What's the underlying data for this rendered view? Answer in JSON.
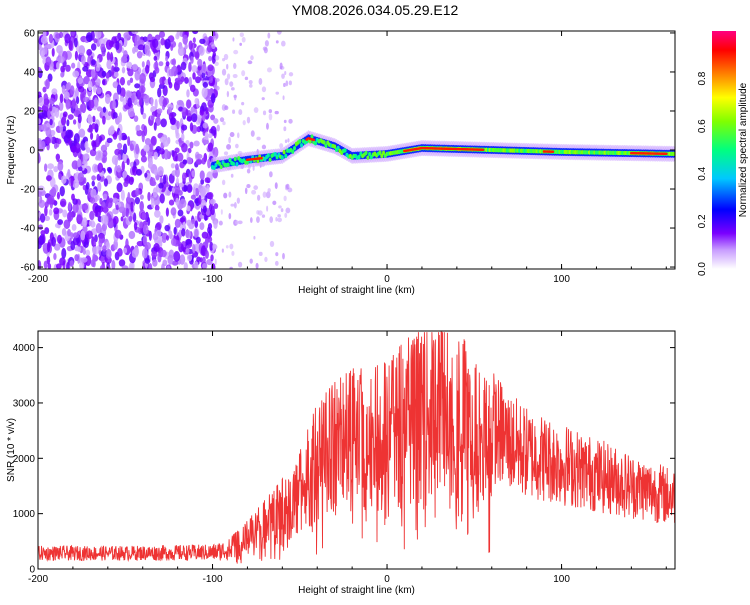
{
  "figure": {
    "title": "YM08.2026.034.05.29.E12"
  },
  "chart_data": [
    {
      "type": "heatmap",
      "name": "spectrogram",
      "xlabel": "Height of straight line (km)",
      "ylabel": "Frequency (Hz)",
      "xlim": [
        -200,
        165
      ],
      "ylim": [
        -61,
        61
      ],
      "xticks": [
        -200,
        -100,
        0,
        100
      ],
      "yticks": [
        60,
        40,
        20,
        0,
        -20,
        -40,
        -60
      ],
      "colorbar": {
        "label": "Normalized spectral amplitude",
        "range": [
          0.0,
          1.0
        ],
        "ticks": [
          0.0,
          0.2,
          0.4,
          0.6,
          0.8
        ],
        "colors": [
          "#d8b0ff",
          "#8000ff",
          "#0000ff",
          "#00c8ff",
          "#00ff80",
          "#80ff00",
          "#ffff00",
          "#ff8000",
          "#ff0000",
          "#ff0080"
        ]
      },
      "ridge": {
        "description_points": [
          {
            "x": -100,
            "y": -8
          },
          {
            "x": -80,
            "y": -5
          },
          {
            "x": -60,
            "y": -3
          },
          {
            "x": -45,
            "y": 6
          },
          {
            "x": -30,
            "y": 2
          },
          {
            "x": -20,
            "y": -3
          },
          {
            "x": 0,
            "y": -2
          },
          {
            "x": 20,
            "y": 1
          },
          {
            "x": 60,
            "y": 0
          },
          {
            "x": 100,
            "y": -1
          },
          {
            "x": 165,
            "y": -2
          }
        ]
      }
    },
    {
      "type": "line",
      "name": "snr",
      "xlabel": "Height of straight line (km)",
      "ylabel": "SNR (10 * v/v)",
      "xlim": [
        -200,
        165
      ],
      "ylim": [
        0,
        4300
      ],
      "xticks": [
        -200,
        -100,
        0,
        100
      ],
      "yticks": [
        0,
        1000,
        2000,
        3000,
        4000
      ],
      "series": [
        {
          "name": "SNR",
          "color": "#ee3333",
          "envelope_x": [
            -200,
            -150,
            -100,
            -90,
            -80,
            -70,
            -60,
            -50,
            -40,
            -30,
            -20,
            -10,
            0,
            10,
            20,
            30,
            40,
            50,
            60,
            70,
            80,
            100,
            120,
            140,
            165
          ],
          "envelope_y": [
            300,
            300,
            330,
            450,
            700,
            1000,
            1300,
            1700,
            2400,
            2700,
            2900,
            2900,
            3000,
            3300,
            3500,
            3650,
            3550,
            3000,
            2600,
            2300,
            2100,
            1900,
            1700,
            1500,
            1300
          ]
        }
      ]
    }
  ]
}
